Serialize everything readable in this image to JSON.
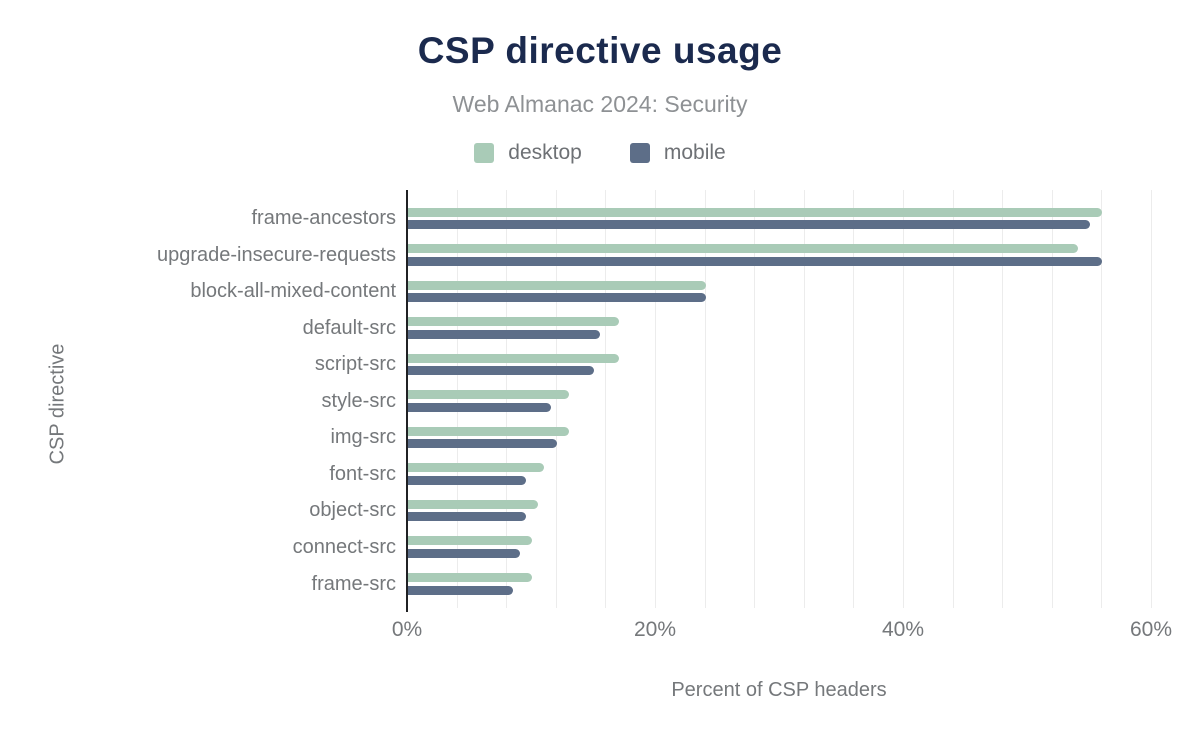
{
  "header": {
    "title": "CSP directive usage",
    "subtitle": "Web Almanac 2024: Security"
  },
  "legend": {
    "items": [
      {
        "label": "desktop",
        "color": "#a9cbb7"
      },
      {
        "label": "mobile",
        "color": "#5d6e88"
      }
    ]
  },
  "chart_data": {
    "type": "bar",
    "orientation": "horizontal",
    "title": "CSP directive usage",
    "subtitle": "Web Almanac 2024: Security",
    "xlabel": "Percent of CSP headers",
    "ylabel": "CSP directive",
    "xlim": [
      0,
      60
    ],
    "xticks": [
      0,
      20,
      40,
      60
    ],
    "xtick_labels": [
      "0%",
      "20%",
      "40%",
      "60%"
    ],
    "minor_gridline_step": 4,
    "grid": true,
    "legend_position": "top",
    "categories": [
      "frame-ancestors",
      "upgrade-insecure-requests",
      "block-all-mixed-content",
      "default-src",
      "script-src",
      "style-src",
      "img-src",
      "font-src",
      "object-src",
      "connect-src",
      "frame-src"
    ],
    "series": [
      {
        "name": "desktop",
        "color": "#a9cbb7",
        "values": [
          56,
          54,
          24,
          17,
          17,
          13,
          13,
          11,
          10.5,
          10,
          10
        ]
      },
      {
        "name": "mobile",
        "color": "#5d6e88",
        "values": [
          55,
          56,
          24,
          15.5,
          15,
          11.5,
          12,
          9.5,
          9.5,
          9,
          8.5
        ]
      }
    ]
  }
}
